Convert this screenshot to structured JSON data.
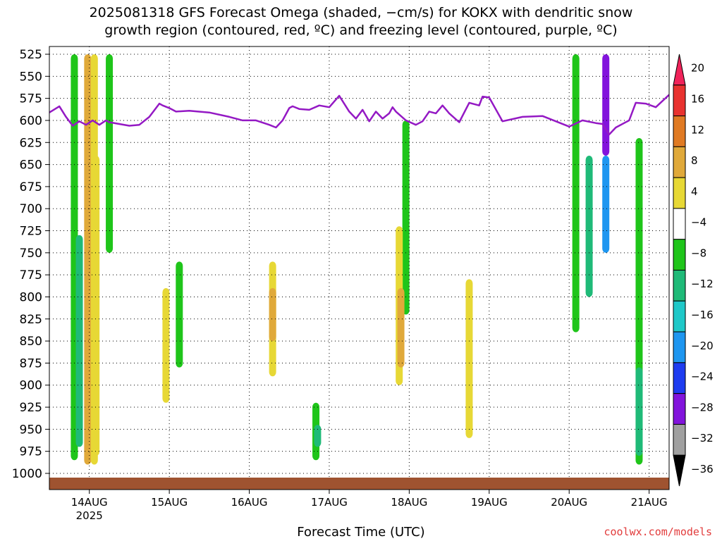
{
  "title_lines": [
    "2025081318 GFS Forecast Omega (shaded, −cm/s) for KOKX with dendritic snow",
    "growth region (contoured, red, ºC) and freezing level (contoured, purple, ºC)"
  ],
  "credit": "coolwx.com/models",
  "chart_data": {
    "type": "heatmap",
    "xlabel": "Forecast Time (UTC)",
    "ylabel": "",
    "x_range_hours": [
      -6,
      180
    ],
    "x_ticks": [
      {
        "hour": 6,
        "label": "14AUG",
        "sub": "2025"
      },
      {
        "hour": 30,
        "label": "15AUG"
      },
      {
        "hour": 54,
        "label": "16AUG"
      },
      {
        "hour": 78,
        "label": "17AUG"
      },
      {
        "hour": 102,
        "label": "18AUG"
      },
      {
        "hour": 126,
        "label": "19AUG"
      },
      {
        "hour": 150,
        "label": "20AUG"
      },
      {
        "hour": 174,
        "label": "21AUG"
      }
    ],
    "y_scale": "pressure (hPa), inverted",
    "y_range": [
      1000,
      525
    ],
    "y_ticks": [
      525,
      550,
      575,
      600,
      625,
      650,
      675,
      700,
      725,
      750,
      775,
      800,
      825,
      850,
      875,
      900,
      925,
      950,
      975,
      1000
    ],
    "grid": true,
    "colorbar": {
      "levels": [
        20,
        16,
        12,
        8,
        4,
        -4,
        -8,
        -12,
        -16,
        -20,
        -24,
        -28,
        -32,
        -36
      ],
      "colors": [
        "#f0235a",
        "#e8322f",
        "#e07a23",
        "#e0a93a",
        "#e7d835",
        "#ffffff",
        "#1fc51a",
        "#1fba78",
        "#1fc8c8",
        "#1e96f0",
        "#1e3cf0",
        "#8214dc",
        "#a0a0a0",
        "#000000"
      ],
      "note": "colors ordered top to bottom"
    },
    "freezing_level": {
      "color": "#9419c4",
      "hours": [
        -6,
        -3,
        -1,
        1,
        3,
        5,
        7,
        9,
        11,
        12,
        15,
        18,
        21,
        24,
        27,
        28,
        30,
        32,
        36,
        42,
        48,
        52,
        56,
        60,
        62,
        64,
        66,
        67,
        69,
        72,
        75,
        78,
        81,
        84,
        86,
        88,
        90,
        92,
        94,
        96,
        97,
        98,
        101,
        104,
        106,
        108,
        110,
        112,
        114,
        117,
        120,
        123,
        124,
        126,
        130,
        136,
        142,
        146,
        150,
        154,
        158,
        160,
        162,
        164,
        168,
        170,
        173,
        176,
        180
      ],
      "pressure": [
        591,
        584,
        596,
        606,
        601,
        605,
        600,
        605,
        600,
        602,
        604,
        606,
        605,
        596,
        581,
        583,
        586,
        590,
        589,
        591,
        596,
        600,
        600,
        605,
        608,
        600,
        586,
        584,
        587,
        588,
        583,
        585,
        572,
        590,
        598,
        588,
        601,
        590,
        598,
        592,
        585,
        590,
        600,
        605,
        601,
        590,
        592,
        583,
        592,
        602,
        580,
        583,
        573,
        574,
        601,
        596,
        595,
        601,
        607,
        600,
        603,
        604,
        616,
        608,
        600,
        580,
        581,
        585,
        571
      ]
    },
    "omega_features": [
      {
        "hour": 1.5,
        "p_top": 525,
        "p_bot": 985,
        "level": -8
      },
      {
        "hour": 3,
        "p_top": 730,
        "p_bot": 970,
        "level": -12
      },
      {
        "hour": 5.5,
        "p_top": 525,
        "p_bot": 990,
        "level": 8
      },
      {
        "hour": 7.5,
        "p_top": 525,
        "p_bot": 990,
        "level": 4
      },
      {
        "hour": 8,
        "p_top": 640,
        "p_bot": 980,
        "level": 4
      },
      {
        "hour": 12,
        "p_top": 525,
        "p_bot": 750,
        "level": -8
      },
      {
        "hour": 29,
        "p_top": 790,
        "p_bot": 920,
        "level": 4
      },
      {
        "hour": 33,
        "p_top": 760,
        "p_bot": 880,
        "level": -8
      },
      {
        "hour": 61,
        "p_top": 760,
        "p_bot": 890,
        "level": 4
      },
      {
        "hour": 61,
        "p_top": 790,
        "p_bot": 850,
        "level": 8
      },
      {
        "hour": 74,
        "p_top": 920,
        "p_bot": 985,
        "level": -8
      },
      {
        "hour": 74.5,
        "p_top": 945,
        "p_bot": 970,
        "level": -12
      },
      {
        "hour": 101,
        "p_top": 600,
        "p_bot": 820,
        "level": -8
      },
      {
        "hour": 99,
        "p_top": 720,
        "p_bot": 900,
        "level": 4
      },
      {
        "hour": 99.5,
        "p_top": 790,
        "p_bot": 880,
        "level": 8
      },
      {
        "hour": 120,
        "p_top": 780,
        "p_bot": 960,
        "level": 4
      },
      {
        "hour": 152,
        "p_top": 525,
        "p_bot": 840,
        "level": -8
      },
      {
        "hour": 156,
        "p_top": 640,
        "p_bot": 800,
        "level": -12
      },
      {
        "hour": 161,
        "p_top": 525,
        "p_bot": 640,
        "level": -28
      },
      {
        "hour": 161,
        "p_top": 640,
        "p_bot": 750,
        "level": -20
      },
      {
        "hour": 171,
        "p_top": 620,
        "p_bot": 990,
        "level": -8
      },
      {
        "hour": 171,
        "p_top": 880,
        "p_bot": 980,
        "level": -12
      }
    ]
  }
}
